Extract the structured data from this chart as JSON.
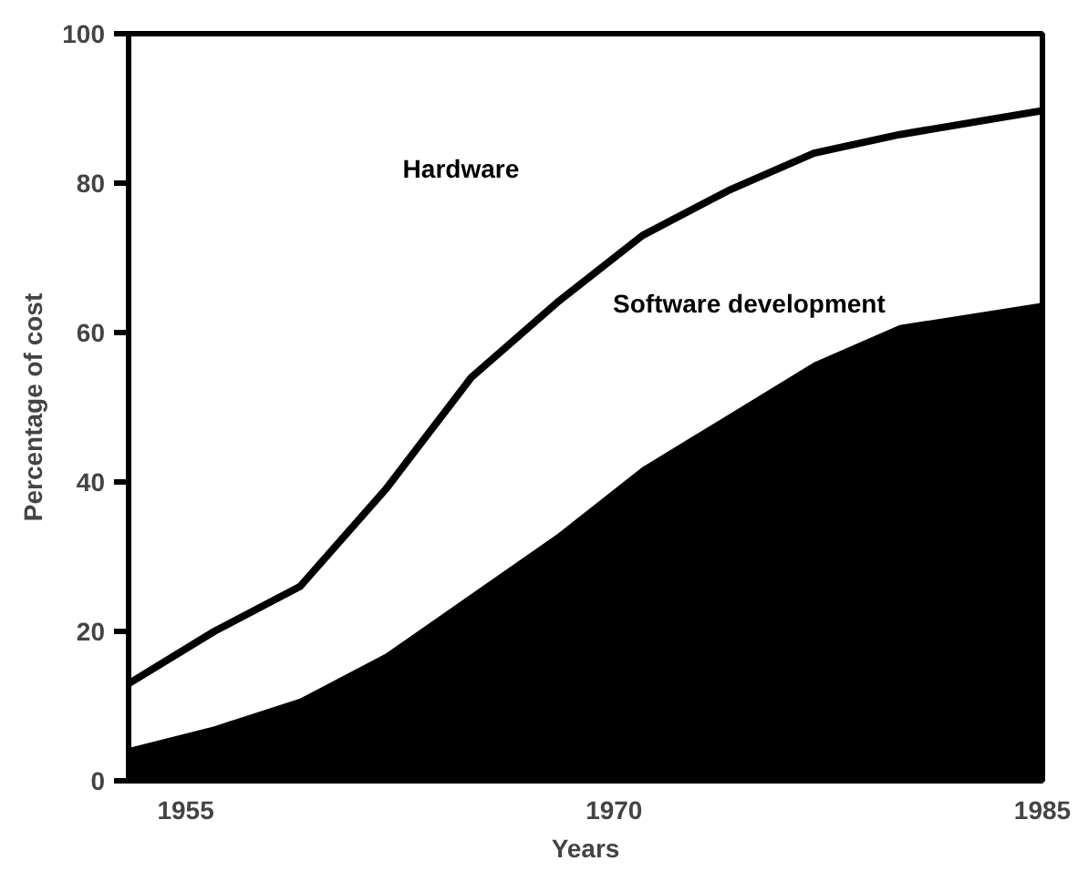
{
  "chart_data": {
    "type": "area",
    "xlabel": "Years",
    "ylabel": "Percentage of cost",
    "x": [
      1953,
      1956,
      1959,
      1962,
      1965,
      1968,
      1971,
      1974,
      1977,
      1980,
      1985
    ],
    "series": [
      {
        "color": "#000000",
        "values": [
          4.4,
          7.3,
          11,
          17,
          25,
          33,
          42,
          49,
          56,
          61,
          64
        ]
      },
      {
        "type": "line",
        "color": "#000000",
        "values": [
          13,
          20,
          26,
          39,
          54,
          64,
          73,
          79,
          84,
          86.5,
          89.7
        ]
      }
    ],
    "annotations": [
      "Hardware",
      "Software development"
    ],
    "xlim": [
      1953,
      1985
    ],
    "ylim": [
      0,
      100
    ],
    "xticks": [
      1955,
      1970,
      1985
    ],
    "yticks": [
      0,
      20,
      40,
      60,
      80,
      100
    ],
    "grid": false
  }
}
